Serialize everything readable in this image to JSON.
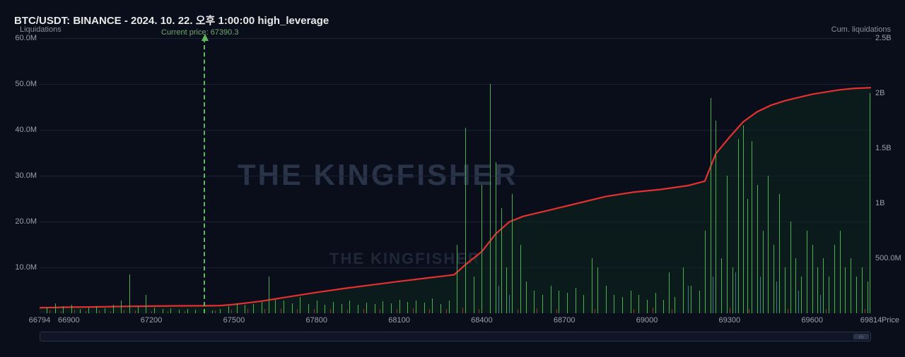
{
  "title": "BTC/USDT: BINANCE - 2024. 10. 22. 오후 1:00:00 high_leverage",
  "axis_left_label": "Liquidations",
  "axis_right_label": "Cum. liquidations",
  "x_axis_label": "Price",
  "current_price_text": "Current price: 67390.3",
  "current_price": 67390.3,
  "watermark_main": "THE   KINGFISHER",
  "watermark_sub": "THE   KINGFISHER",
  "scrollbar_thumb_label": "m",
  "chart": {
    "x_min": 66794,
    "x_max": 69814,
    "y_left_min": 0,
    "y_left_max": 60000000,
    "y_right_min": 0,
    "y_right_max": 2500000000,
    "x_ticks": [
      66794,
      66900,
      67200,
      67500,
      67800,
      68100,
      68400,
      68700,
      69000,
      69300,
      69600,
      69814
    ],
    "y_left_ticks": [
      {
        "v": 10000000,
        "label": "10.0M"
      },
      {
        "v": 20000000,
        "label": "20.0M"
      },
      {
        "v": 30000000,
        "label": "30.0M"
      },
      {
        "v": 40000000,
        "label": "40.0M"
      },
      {
        "v": 50000000,
        "label": "50.0M"
      },
      {
        "v": 60000000,
        "label": "60.0M"
      }
    ],
    "y_right_ticks": [
      {
        "v": 500000000,
        "label": "500.0M"
      },
      {
        "v": 1000000000,
        "label": "1B"
      },
      {
        "v": 1500000000,
        "label": "1.5B"
      },
      {
        "v": 2000000000,
        "label": "2B"
      },
      {
        "v": 2500000000,
        "label": "2.5B"
      }
    ],
    "grid_color": "#1a2236",
    "background_color": "#0a0e1a",
    "bar_color_green": "#4caf50",
    "bar_color_red": "#8b3a2f",
    "bar_color_teal": "#3a7a8a",
    "cum_line_color": "#e43030",
    "cum_area_color": "#0d2a1a",
    "price_line_color": "#5fb85f",
    "bars_green": [
      [
        66820,
        1.2
      ],
      [
        66850,
        2.1
      ],
      [
        66880,
        1.5
      ],
      [
        66910,
        1.8
      ],
      [
        66940,
        1.0
      ],
      [
        66970,
        1.3
      ],
      [
        67000,
        1.6
      ],
      [
        67030,
        1.1
      ],
      [
        67060,
        1.9
      ],
      [
        67090,
        2.8
      ],
      [
        67120,
        8.5
      ],
      [
        67150,
        1.4
      ],
      [
        67180,
        4.0
      ],
      [
        67210,
        1.2
      ],
      [
        67240,
        0.9
      ],
      [
        67270,
        1.1
      ],
      [
        67300,
        0.8
      ],
      [
        67330,
        1.0
      ],
      [
        67360,
        0.7
      ],
      [
        67420,
        0.6
      ],
      [
        67450,
        1.0
      ],
      [
        67480,
        1.5
      ],
      [
        67510,
        2.2
      ],
      [
        67540,
        1.8
      ],
      [
        67570,
        2.0
      ],
      [
        67600,
        2.5
      ],
      [
        67625,
        8.0
      ],
      [
        67650,
        3.0
      ],
      [
        67680,
        2.8
      ],
      [
        67710,
        2.2
      ],
      [
        67740,
        3.5
      ],
      [
        67770,
        2.0
      ],
      [
        67800,
        2.8
      ],
      [
        67830,
        1.8
      ],
      [
        67860,
        2.5
      ],
      [
        67890,
        2.0
      ],
      [
        67920,
        2.8
      ],
      [
        67950,
        1.9
      ],
      [
        67980,
        2.3
      ],
      [
        68010,
        2.0
      ],
      [
        68040,
        2.6
      ],
      [
        68070,
        2.2
      ],
      [
        68100,
        3.0
      ],
      [
        68130,
        2.5
      ],
      [
        68160,
        2.8
      ],
      [
        68190,
        2.3
      ],
      [
        68220,
        3.2
      ],
      [
        68250,
        2.0
      ],
      [
        68280,
        2.8
      ],
      [
        68310,
        15.0
      ],
      [
        68340,
        40.5
      ],
      [
        68370,
        8.0
      ],
      [
        68400,
        28.0
      ],
      [
        68430,
        50.0
      ],
      [
        68450,
        33.0
      ],
      [
        68470,
        23.0
      ],
      [
        68490,
        10.0
      ],
      [
        68510,
        26.0
      ],
      [
        68540,
        15.0
      ],
      [
        68560,
        7.0
      ],
      [
        68590,
        5.0
      ],
      [
        68620,
        4.0
      ],
      [
        68650,
        6.0
      ],
      [
        68680,
        5.0
      ],
      [
        68710,
        4.5
      ],
      [
        68740,
        5.5
      ],
      [
        68770,
        4.0
      ],
      [
        68800,
        12.0
      ],
      [
        68820,
        10.0
      ],
      [
        68850,
        6.0
      ],
      [
        68880,
        4.0
      ],
      [
        68910,
        3.5
      ],
      [
        68940,
        5.0
      ],
      [
        68970,
        4.0
      ],
      [
        69000,
        3.0
      ],
      [
        69030,
        4.5
      ],
      [
        69060,
        3.0
      ],
      [
        69080,
        9.0
      ],
      [
        69100,
        3.5
      ],
      [
        69130,
        10.0
      ],
      [
        69160,
        6.0
      ],
      [
        69190,
        5.0
      ],
      [
        69210,
        18.0
      ],
      [
        69230,
        47.0
      ],
      [
        69250,
        42.0
      ],
      [
        69270,
        12.0
      ],
      [
        69290,
        30.0
      ],
      [
        69310,
        10.0
      ],
      [
        69330,
        38.0
      ],
      [
        69350,
        41.0
      ],
      [
        69365,
        25.0
      ],
      [
        69380,
        37.5
      ],
      [
        69400,
        28.0
      ],
      [
        69420,
        18.0
      ],
      [
        69440,
        30.0
      ],
      [
        69460,
        15.0
      ],
      [
        69480,
        26.0
      ],
      [
        69500,
        10.0
      ],
      [
        69520,
        20.0
      ],
      [
        69540,
        12.0
      ],
      [
        69560,
        8.0
      ],
      [
        69580,
        18.0
      ],
      [
        69600,
        15.0
      ],
      [
        69620,
        10.0
      ],
      [
        69640,
        12.0
      ],
      [
        69660,
        8.0
      ],
      [
        69680,
        15.0
      ],
      [
        69700,
        18.0
      ],
      [
        69720,
        10.0
      ],
      [
        69740,
        12.0
      ],
      [
        69760,
        8.0
      ],
      [
        69780,
        10.0
      ],
      [
        69800,
        7.0
      ],
      [
        69810,
        48.0
      ]
    ],
    "bars_red": [
      [
        66830,
        0.6
      ],
      [
        66870,
        0.5
      ],
      [
        66920,
        0.7
      ],
      [
        66960,
        0.4
      ],
      [
        67010,
        0.6
      ],
      [
        67050,
        0.5
      ],
      [
        67100,
        0.8
      ],
      [
        67140,
        0.6
      ],
      [
        67200,
        0.5
      ],
      [
        67260,
        0.4
      ],
      [
        67320,
        0.5
      ],
      [
        67430,
        0.6
      ],
      [
        67490,
        0.8
      ],
      [
        67550,
        0.9
      ],
      [
        67610,
        1.0
      ],
      [
        67670,
        1.1
      ],
      [
        67730,
        1.0
      ],
      [
        67790,
        0.9
      ],
      [
        67850,
        1.0
      ],
      [
        67910,
        0.8
      ],
      [
        67970,
        0.9
      ],
      [
        68030,
        1.0
      ],
      [
        68090,
        0.9
      ],
      [
        68150,
        1.1
      ],
      [
        68210,
        0.9
      ],
      [
        68270,
        1.0
      ],
      [
        68330,
        1.2
      ],
      [
        68390,
        1.0
      ],
      [
        68460,
        1.3
      ],
      [
        68530,
        1.0
      ],
      [
        68600,
        1.1
      ],
      [
        68670,
        1.0
      ],
      [
        68740,
        1.2
      ],
      [
        68810,
        1.0
      ],
      [
        68880,
        1.1
      ],
      [
        68950,
        1.0
      ],
      [
        69020,
        1.2
      ],
      [
        69090,
        1.0
      ],
      [
        69160,
        1.1
      ],
      [
        69230,
        1.0
      ],
      [
        69300,
        1.2
      ],
      [
        69370,
        1.0
      ],
      [
        69440,
        1.1
      ],
      [
        69510,
        1.0
      ],
      [
        69580,
        1.2
      ],
      [
        69650,
        1.0
      ],
      [
        69720,
        1.1
      ],
      [
        69790,
        1.0
      ]
    ],
    "bars_teal": [
      [
        68460,
        6.0
      ],
      [
        68500,
        4.0
      ],
      [
        69150,
        6.0
      ],
      [
        69240,
        8.0
      ],
      [
        69320,
        9.0
      ],
      [
        69410,
        8.0
      ],
      [
        69470,
        7.0
      ],
      [
        69550,
        5.0
      ],
      [
        69630,
        4.0
      ]
    ],
    "cum_points": [
      [
        66794,
        50
      ],
      [
        66900,
        55
      ],
      [
        67000,
        58
      ],
      [
        67100,
        62
      ],
      [
        67200,
        65
      ],
      [
        67300,
        67
      ],
      [
        67390,
        68
      ],
      [
        67450,
        70
      ],
      [
        67500,
        80
      ],
      [
        67550,
        95
      ],
      [
        67600,
        110
      ],
      [
        67700,
        150
      ],
      [
        67800,
        190
      ],
      [
        67900,
        225
      ],
      [
        68000,
        258
      ],
      [
        68100,
        290
      ],
      [
        68200,
        320
      ],
      [
        68300,
        350
      ],
      [
        68340,
        440
      ],
      [
        68400,
        560
      ],
      [
        68450,
        720
      ],
      [
        68500,
        830
      ],
      [
        68550,
        880
      ],
      [
        68650,
        940
      ],
      [
        68750,
        1000
      ],
      [
        68850,
        1060
      ],
      [
        68950,
        1100
      ],
      [
        69050,
        1125
      ],
      [
        69150,
        1160
      ],
      [
        69210,
        1200
      ],
      [
        69250,
        1450
      ],
      [
        69300,
        1600
      ],
      [
        69350,
        1740
      ],
      [
        69400,
        1830
      ],
      [
        69450,
        1890
      ],
      [
        69500,
        1930
      ],
      [
        69550,
        1960
      ],
      [
        69600,
        1990
      ],
      [
        69650,
        2010
      ],
      [
        69700,
        2030
      ],
      [
        69750,
        2042
      ],
      [
        69800,
        2048
      ],
      [
        69814,
        2050
      ]
    ]
  }
}
